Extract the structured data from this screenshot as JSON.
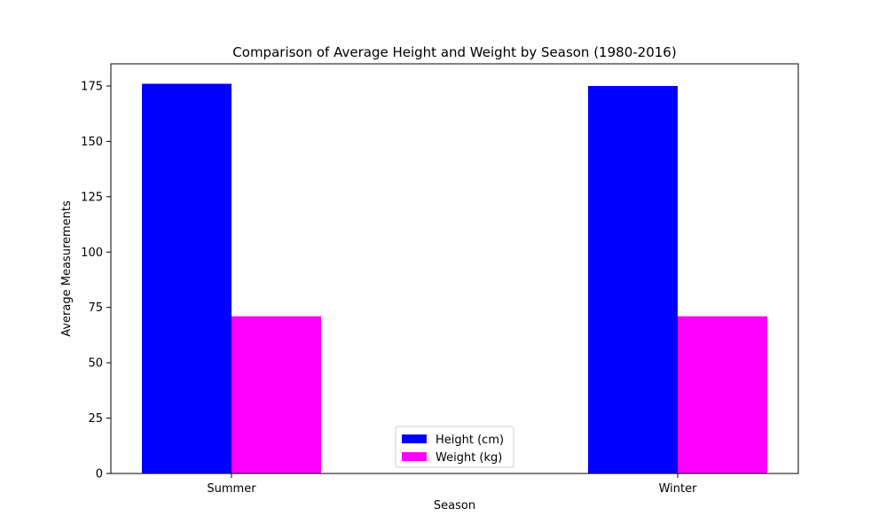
{
  "chart_data": {
    "type": "bar",
    "title": "Comparison of Average Height and Weight by Season (1980-2016)",
    "xlabel": "Season",
    "ylabel": "Average Measurements",
    "categories": [
      "Summer",
      "Winter"
    ],
    "series": [
      {
        "name": "Height (cm)",
        "color": "#0000ff",
        "values": [
          176.0,
          175.0
        ]
      },
      {
        "name": "Weight (kg)",
        "color": "#ff00ff",
        "values": [
          71.0,
          71.0
        ]
      }
    ],
    "ylim": [
      0,
      185
    ],
    "yticks": [
      0,
      25,
      50,
      75,
      100,
      125,
      150,
      175
    ],
    "grid": false,
    "legend_position": "bottom-center"
  }
}
